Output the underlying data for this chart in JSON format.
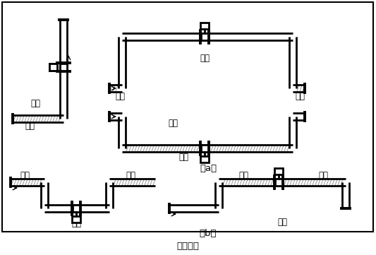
{
  "title": "图（四）",
  "label_a": "（a）",
  "label_b": "（b）",
  "text_correct": "正确",
  "text_wrong": "错误",
  "text_liquid": "液体",
  "text_bubble": "气泡",
  "bg_color": "#ffffff",
  "lc": "#000000",
  "lw": 2.0,
  "lw_flange": 2.8,
  "fs": 8.5
}
